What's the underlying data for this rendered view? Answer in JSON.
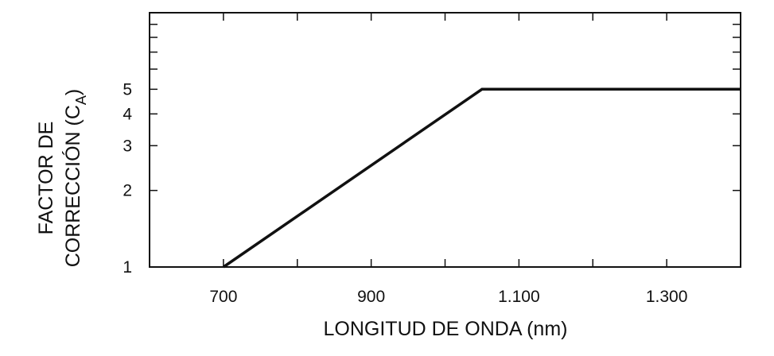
{
  "chart_data": {
    "type": "line",
    "title": "",
    "xlabel": "LONGITUD DE ONDA (nm)",
    "ylabel_line1": "FACTOR DE",
    "ylabel_line2_main": "CORRECCIÓN (C",
    "ylabel_line2_sub": "A",
    "ylabel_line2_end": ")",
    "x_scale": "linear",
    "y_scale": "log",
    "xlim": [
      600,
      1400
    ],
    "ylim": [
      1,
      10
    ],
    "x_ticks": [
      600,
      700,
      800,
      900,
      1000,
      1100,
      1200,
      1300,
      1400
    ],
    "x_tick_labels": [
      {
        "value": 700,
        "text": "700"
      },
      {
        "value": 900,
        "text": "900"
      },
      {
        "value": 1100,
        "text": "1.100"
      },
      {
        "value": 1300,
        "text": "1.300"
      }
    ],
    "y_ticks": [
      1,
      2,
      3,
      4,
      5,
      6,
      7,
      8,
      9,
      10
    ],
    "y_tick_labels": [
      {
        "value": 1,
        "text": "1"
      },
      {
        "value": 2,
        "text": "2"
      },
      {
        "value": 3,
        "text": "3"
      },
      {
        "value": 4,
        "text": "4"
      },
      {
        "value": 5,
        "text": "5"
      }
    ],
    "grid": false,
    "series": [
      {
        "x": [
          700,
          1050,
          1400
        ],
        "y": [
          1,
          5,
          5
        ]
      }
    ]
  }
}
